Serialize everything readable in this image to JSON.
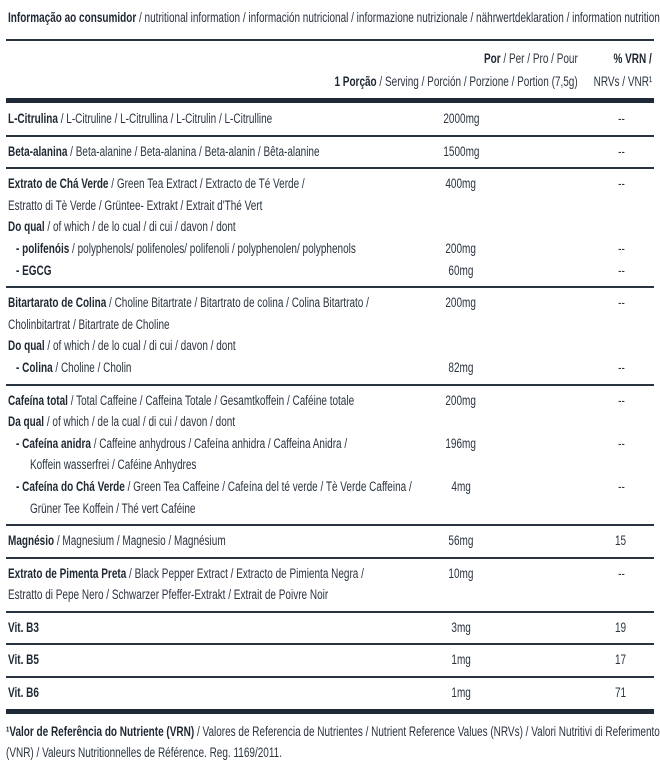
{
  "title": {
    "bold": "Informação ao consumidor",
    "text": " / nutritional information / información nutricional / informazione nutrizionale / nährwertdeklaration / information nutritionelle"
  },
  "header": {
    "per_bold": "Por",
    "per_text": " / Per / Pro / Pour",
    "serving_bold": "1 Porção",
    "serving_text": " / Serving / Porción / Porzione / Portion (7,5g)",
    "vrn_bold": "% VRN /",
    "vrn_text": "NRVs / VNR¹"
  },
  "sections": [
    {
      "lines": [
        {
          "bold": "L-Citrulina",
          "text": " / L-Citruline / L-Citrullina / L-Citrulin / L-Citrulline",
          "indent": 0,
          "amount": "2000mg",
          "vrn": "--"
        }
      ]
    },
    {
      "lines": [
        {
          "bold": "Beta-alanina",
          "text": " / Beta-alanine / Beta-alanina / Beta-alanin / Bêta-alanine",
          "indent": 0,
          "amount": "1500mg",
          "vrn": "--"
        }
      ]
    },
    {
      "lines": [
        {
          "bold": "Extrato de Chá Verde",
          "text": " / Green Tea Extract / Extracto de Té Verde /",
          "indent": 0,
          "amount": "400mg",
          "vrn": "--"
        },
        {
          "bold": "",
          "text": "Estratto di Tè Verde / Grüntee- Extrakt / Extrait d'Thé Vert",
          "indent": 0,
          "amount": "",
          "vrn": ""
        },
        {
          "bold": "Do qual",
          "text": " / of which / de lo cual / di cui / davon / dont",
          "indent": 0,
          "amount": "",
          "vrn": ""
        },
        {
          "bold": "-  polifenóis",
          "text": " / polyphenols/ polifenoles/ polifenoli / polyphenolen/ polyphenols",
          "indent": 1,
          "amount": "200mg",
          "vrn": "--"
        },
        {
          "bold": "-  EGCG",
          "text": "",
          "indent": 1,
          "amount": "60mg",
          "vrn": "--"
        }
      ]
    },
    {
      "lines": [
        {
          "bold": "Bitartarato de Colina",
          "text": " / Choline Bitartrate / Bitartrato de colina / Colina Bitartrato /",
          "indent": 0,
          "amount": "200mg",
          "vrn": "--"
        },
        {
          "bold": "",
          "text": "Cholinbitartrat / Bitartrate de Choline",
          "indent": 0,
          "amount": "",
          "vrn": ""
        },
        {
          "bold": "Do qual",
          "text": " / of which / de lo cual / di cui / davon / dont",
          "indent": 0,
          "amount": "",
          "vrn": ""
        },
        {
          "bold": "-  Colina",
          "text": " / Choline / Cholin",
          "indent": 1,
          "amount": "82mg",
          "vrn": "--"
        }
      ]
    },
    {
      "lines": [
        {
          "bold": "Cafeína total",
          "text": " / Total Caffeine / Caffeina Totale / Gesamtkoffein / Caféine totale",
          "indent": 0,
          "amount": "200mg",
          "vrn": "--"
        },
        {
          "bold": "Da qual",
          "text": " / of which / de la cual / di cui / davon / dont",
          "indent": 0,
          "amount": "",
          "vrn": ""
        },
        {
          "bold": "-  Cafeína anidra",
          "text": " / Caffeine anhydrous / Cafeína anhidra / Caffeina Anidra /",
          "indent": 1,
          "amount": "196mg",
          "vrn": "--"
        },
        {
          "bold": "",
          "text": "Koffein wasserfrei / Caféine Anhydres",
          "indent": 2,
          "amount": "",
          "vrn": ""
        },
        {
          "bold": "-  Cafeína do Chá Verde",
          "text": " / Green Tea Caffeine / Cafeína del té verde / Tè Verde Caffeina /",
          "indent": 1,
          "amount": "4mg",
          "vrn": "--"
        },
        {
          "bold": "",
          "text": "Grüner Tee Koffein /  Thé vert Caféine",
          "indent": 2,
          "amount": "",
          "vrn": ""
        }
      ]
    },
    {
      "lines": [
        {
          "bold": "Magnésio",
          "text": " / Magnesium / Magnesio / Magnésium",
          "indent": 0,
          "amount": "56mg",
          "vrn": "15"
        }
      ]
    },
    {
      "lines": [
        {
          "bold": "Extrato de Pimenta Preta",
          "text": " / Black Pepper Extract / Extracto de Pimienta Negra /",
          "indent": 0,
          "amount": "10mg",
          "vrn": "--"
        },
        {
          "bold": "",
          "text": "Estratto di Pepe Nero / Schwarzer Pfeffer-Extrakt / Extrait de Poivre Noir",
          "indent": 0,
          "amount": "",
          "vrn": ""
        }
      ]
    },
    {
      "lines": [
        {
          "bold": "Vit. B3",
          "text": "",
          "indent": 0,
          "amount": "3mg",
          "vrn": "19"
        }
      ]
    },
    {
      "lines": [
        {
          "bold": "Vit. B5",
          "text": "",
          "indent": 0,
          "amount": "1mg",
          "vrn": "17"
        }
      ]
    },
    {
      "lines": [
        {
          "bold": "Vit. B6",
          "text": "",
          "indent": 0,
          "amount": "1mg",
          "vrn": "71"
        }
      ]
    }
  ],
  "footnote": {
    "bold": "¹Valor de Referência do Nutriente (VRN)",
    "text1": " / Valores de Referencia de Nutrientes / Nutrient Reference Values (NRVs) / Valori Nutritivi di Referimento",
    "text2": "(VNR) / Valeurs Nutritionnelles de Référence. Reg. 1169/2011."
  }
}
